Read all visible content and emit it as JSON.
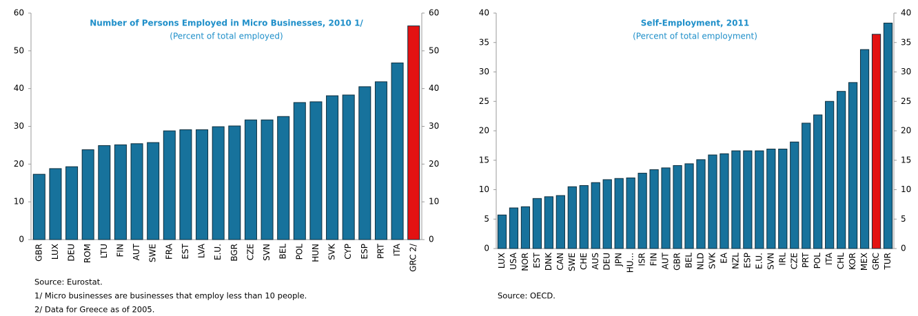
{
  "chart_data": [
    {
      "type": "bar",
      "title": "Number of Persons Employed in Micro Businesses, 2010 1/",
      "subtitle": "(Percent of total employed)",
      "categories": [
        "GBR",
        "LUX",
        "DEU",
        "ROM",
        "LTU",
        "FIN",
        "AUT",
        "SWE",
        "FRA",
        "EST",
        "LVA",
        "E.U.",
        "BGR",
        "CZE",
        "SVN",
        "BEL",
        "POL",
        "HUN",
        "SVK",
        "CYP",
        "ESP",
        "PRT",
        "ITA",
        "GRC 2/"
      ],
      "values": [
        17.3,
        18.8,
        19.3,
        23.8,
        24.9,
        25.1,
        25.4,
        25.7,
        28.8,
        29.1,
        29.1,
        29.9,
        30.1,
        31.7,
        31.7,
        32.6,
        36.3,
        36.5,
        38.1,
        38.3,
        40.5,
        41.8,
        46.8,
        56.6
      ],
      "colors": [
        "#17729c",
        "#17729c",
        "#17729c",
        "#17729c",
        "#17729c",
        "#17729c",
        "#17729c",
        "#17729c",
        "#17729c",
        "#17729c",
        "#17729c",
        "#17729c",
        "#17729c",
        "#17729c",
        "#17729c",
        "#17729c",
        "#17729c",
        "#17729c",
        "#17729c",
        "#17729c",
        "#17729c",
        "#17729c",
        "#17729c",
        "#e31212"
      ],
      "ylim": [
        0,
        60
      ],
      "yticks": [
        0,
        10,
        20,
        30,
        40,
        50,
        60
      ],
      "notes": [
        "Source: Eurostat.",
        "1/ Micro businesses are businesses that employ less than 10 people.",
        "2/ Data for Greece as of 2005."
      ]
    },
    {
      "type": "bar",
      "title": "Self-Employment, 2011",
      "subtitle": "(Percent of total employment)",
      "categories": [
        "LUX",
        "USA",
        "NOR",
        "EST",
        "DNK",
        "CAN",
        "SWE",
        "CHE",
        "AUS",
        "DEU",
        "JPN",
        "HU...",
        "ISR",
        "FIN",
        "AUT",
        "GBR",
        "BEL",
        "NLD",
        "SVK",
        "EA",
        "NZL",
        "ESP",
        "E.U.",
        "SVN",
        "IRL",
        "CZE",
        "PRT",
        "POL",
        "ITA",
        "CHL",
        "KOR",
        "MEX",
        "GRC",
        "TUR"
      ],
      "values": [
        5.7,
        6.9,
        7.1,
        8.5,
        8.8,
        9.0,
        10.5,
        10.7,
        11.2,
        11.7,
        11.9,
        12.0,
        12.8,
        13.4,
        13.7,
        14.1,
        14.4,
        15.1,
        15.9,
        16.1,
        16.6,
        16.6,
        16.6,
        16.9,
        16.9,
        18.1,
        21.3,
        22.7,
        25.0,
        26.7,
        28.2,
        33.8,
        36.4,
        38.3
      ],
      "colors": [
        "#17729c",
        "#17729c",
        "#17729c",
        "#17729c",
        "#17729c",
        "#17729c",
        "#17729c",
        "#17729c",
        "#17729c",
        "#17729c",
        "#17729c",
        "#17729c",
        "#17729c",
        "#17729c",
        "#17729c",
        "#17729c",
        "#17729c",
        "#17729c",
        "#17729c",
        "#17729c",
        "#17729c",
        "#17729c",
        "#17729c",
        "#17729c",
        "#17729c",
        "#17729c",
        "#17729c",
        "#17729c",
        "#17729c",
        "#17729c",
        "#17729c",
        "#17729c",
        "#e31212",
        "#17729c"
      ],
      "ylim": [
        0,
        40
      ],
      "yticks": [
        0,
        5,
        10,
        15,
        20,
        25,
        30,
        35,
        40
      ],
      "notes": [
        "Source: OECD."
      ]
    }
  ]
}
